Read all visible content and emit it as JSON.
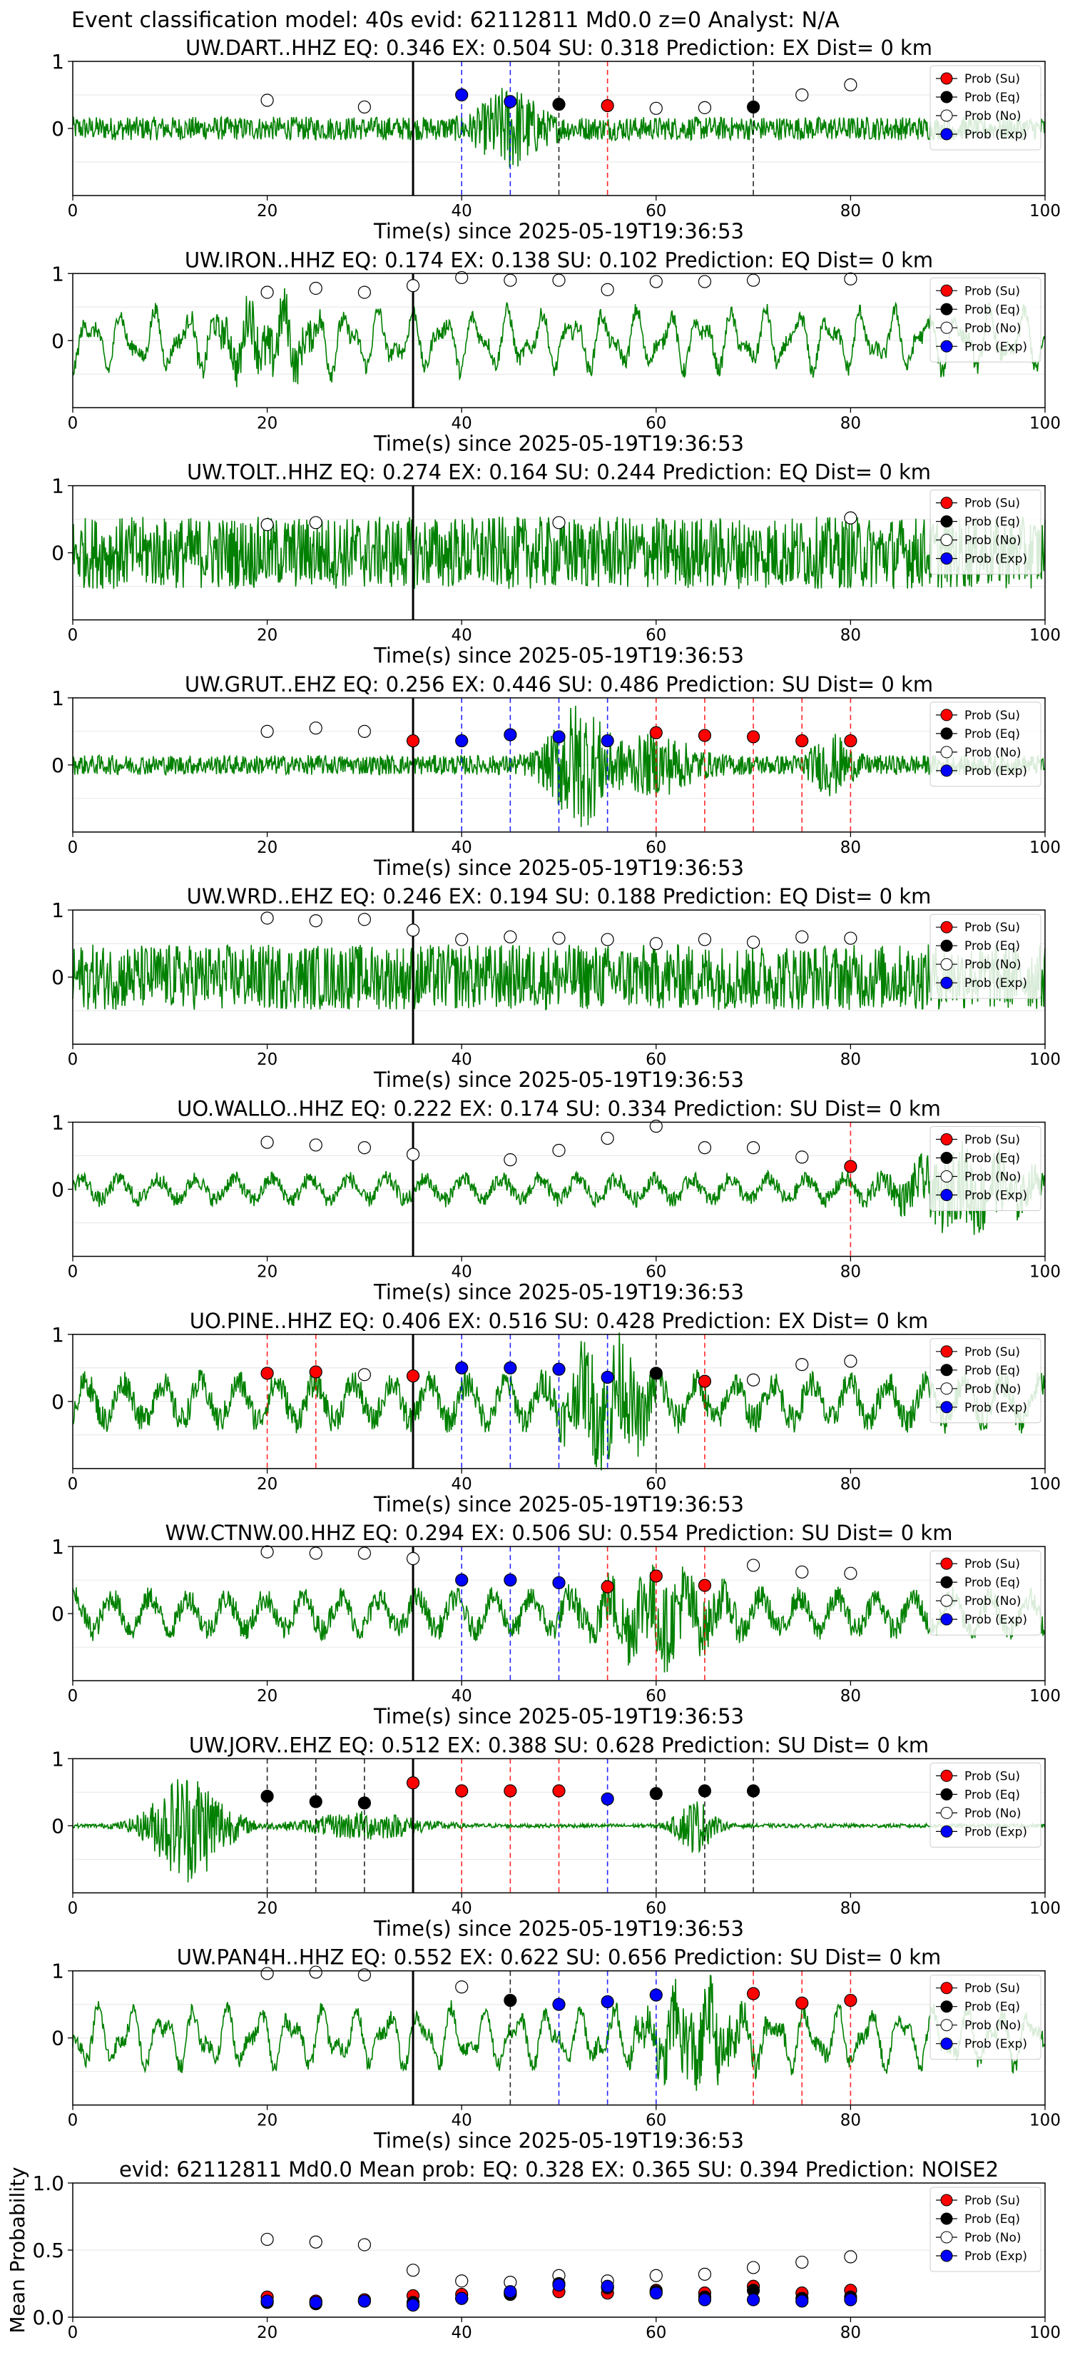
{
  "figure_title": "Event classification model: 40s evid: 62112811 Md0.0 z=0 Analyst: N/A",
  "x_axis_label": "Time(s) since 2025-05-19T19:36:53",
  "legend_labels": [
    "Prob (Su)",
    "Prob (Eq)",
    "Prob (No)",
    "Prob (Exp)"
  ],
  "colors": {
    "su": "#ff0000",
    "eq": "#000000",
    "no": "#ffffff",
    "exp": "#0000ff",
    "trace": "#008000",
    "origin_line": "#000000"
  },
  "chart_data": [
    {
      "type": "line",
      "title": "UW.DART..HHZ   EQ: 0.346  EX: 0.504  SU: 0.318   Prediction: EX    Dist= 0 km",
      "xlim": [
        0,
        100
      ],
      "ylim": [
        -1,
        1
      ],
      "xticks": [
        0,
        20,
        40,
        60,
        80,
        100
      ],
      "yticks": [
        0,
        1
      ],
      "trace": {
        "style": "noise",
        "amp": 0.18,
        "bursts": [
          [
            45,
            3,
            0.5
          ]
        ]
      },
      "origin_time": 35,
      "points": [
        {
          "x": 20,
          "y": 0.42,
          "class": "no"
        },
        {
          "x": 30,
          "y": 0.32,
          "class": "no"
        },
        {
          "x": 40,
          "y": 0.5,
          "class": "exp"
        },
        {
          "x": 45,
          "y": 0.4,
          "class": "exp"
        },
        {
          "x": 50,
          "y": 0.36,
          "class": "eq"
        },
        {
          "x": 55,
          "y": 0.34,
          "class": "su"
        },
        {
          "x": 60,
          "y": 0.3,
          "class": "no"
        },
        {
          "x": 65,
          "y": 0.31,
          "class": "no"
        },
        {
          "x": 70,
          "y": 0.32,
          "class": "eq"
        },
        {
          "x": 75,
          "y": 0.5,
          "class": "no"
        },
        {
          "x": 80,
          "y": 0.65,
          "class": "no"
        }
      ]
    },
    {
      "type": "line",
      "title": "UW.IRON..HHZ   EQ: 0.174  EX: 0.138  SU: 0.102   Prediction: EQ    Dist= 0 km",
      "xlim": [
        0,
        100
      ],
      "ylim": [
        -1,
        1
      ],
      "xticks": [
        0,
        20,
        40,
        60,
        80,
        100
      ],
      "yticks": [
        0,
        1
      ],
      "trace": {
        "style": "wave",
        "amp": 0.5,
        "bursts": [
          [
            20,
            5,
            0.3
          ]
        ]
      },
      "origin_time": 35,
      "points": [
        {
          "x": 20,
          "y": 0.72,
          "class": "no"
        },
        {
          "x": 25,
          "y": 0.78,
          "class": "no"
        },
        {
          "x": 30,
          "y": 0.72,
          "class": "no"
        },
        {
          "x": 35,
          "y": 0.82,
          "class": "no"
        },
        {
          "x": 40,
          "y": 0.94,
          "class": "no"
        },
        {
          "x": 45,
          "y": 0.9,
          "class": "no"
        },
        {
          "x": 50,
          "y": 0.9,
          "class": "no"
        },
        {
          "x": 55,
          "y": 0.76,
          "class": "no"
        },
        {
          "x": 60,
          "y": 0.88,
          "class": "no"
        },
        {
          "x": 65,
          "y": 0.88,
          "class": "no"
        },
        {
          "x": 70,
          "y": 0.9,
          "class": "no"
        },
        {
          "x": 80,
          "y": 0.92,
          "class": "no"
        }
      ]
    },
    {
      "type": "line",
      "title": "UW.TOLT..HHZ   EQ: 0.274  EX: 0.164  SU: 0.244   Prediction: EQ    Dist= 0 km",
      "xlim": [
        0,
        100
      ],
      "ylim": [
        -1,
        1
      ],
      "xticks": [
        0,
        20,
        40,
        60,
        80,
        100
      ],
      "yticks": [
        0,
        1
      ],
      "trace": {
        "style": "noise",
        "amp": 0.55,
        "bursts": []
      },
      "origin_time": 35,
      "points": [
        {
          "x": 20,
          "y": 0.42,
          "class": "no"
        },
        {
          "x": 25,
          "y": 0.45,
          "class": "no"
        },
        {
          "x": 50,
          "y": 0.45,
          "class": "no"
        },
        {
          "x": 80,
          "y": 0.52,
          "class": "no"
        }
      ]
    },
    {
      "type": "line",
      "title": "UW.GRUT..EHZ   EQ: 0.256  EX: 0.446  SU: 0.486   Prediction: SU    Dist= 0 km",
      "xlim": [
        0,
        100
      ],
      "ylim": [
        -1,
        1
      ],
      "xticks": [
        0,
        20,
        40,
        60,
        80,
        100
      ],
      "yticks": [
        0,
        1
      ],
      "trace": {
        "style": "noise",
        "amp": 0.15,
        "bursts": [
          [
            52,
            3,
            0.85
          ],
          [
            60,
            4,
            0.35
          ],
          [
            78,
            2,
            0.35
          ]
        ]
      },
      "origin_time": 35,
      "points": [
        {
          "x": 20,
          "y": 0.5,
          "class": "no"
        },
        {
          "x": 25,
          "y": 0.55,
          "class": "no"
        },
        {
          "x": 30,
          "y": 0.5,
          "class": "no"
        },
        {
          "x": 35,
          "y": 0.36,
          "class": "su"
        },
        {
          "x": 40,
          "y": 0.36,
          "class": "exp"
        },
        {
          "x": 45,
          "y": 0.45,
          "class": "exp"
        },
        {
          "x": 50,
          "y": 0.42,
          "class": "exp"
        },
        {
          "x": 55,
          "y": 0.36,
          "class": "exp"
        },
        {
          "x": 60,
          "y": 0.48,
          "class": "su"
        },
        {
          "x": 65,
          "y": 0.44,
          "class": "su"
        },
        {
          "x": 70,
          "y": 0.42,
          "class": "su"
        },
        {
          "x": 75,
          "y": 0.36,
          "class": "su"
        },
        {
          "x": 80,
          "y": 0.36,
          "class": "su"
        }
      ]
    },
    {
      "type": "line",
      "title": "UW.WRD..EHZ   EQ: 0.246  EX: 0.194  SU: 0.188   Prediction: EQ    Dist= 0 km",
      "xlim": [
        0,
        100
      ],
      "ylim": [
        -1,
        1
      ],
      "xticks": [
        0,
        20,
        40,
        60,
        80,
        100
      ],
      "yticks": [
        0,
        1
      ],
      "trace": {
        "style": "noise",
        "amp": 0.5,
        "bursts": []
      },
      "origin_time": 35,
      "points": [
        {
          "x": 20,
          "y": 0.88,
          "class": "no"
        },
        {
          "x": 25,
          "y": 0.84,
          "class": "no"
        },
        {
          "x": 30,
          "y": 0.86,
          "class": "no"
        },
        {
          "x": 35,
          "y": 0.7,
          "class": "no"
        },
        {
          "x": 40,
          "y": 0.56,
          "class": "no"
        },
        {
          "x": 45,
          "y": 0.6,
          "class": "no"
        },
        {
          "x": 50,
          "y": 0.58,
          "class": "no"
        },
        {
          "x": 55,
          "y": 0.56,
          "class": "no"
        },
        {
          "x": 60,
          "y": 0.5,
          "class": "no"
        },
        {
          "x": 65,
          "y": 0.56,
          "class": "no"
        },
        {
          "x": 70,
          "y": 0.52,
          "class": "no"
        },
        {
          "x": 75,
          "y": 0.6,
          "class": "no"
        },
        {
          "x": 80,
          "y": 0.58,
          "class": "no"
        }
      ]
    },
    {
      "type": "line",
      "title": "UO.WALLO..HHZ   EQ: 0.222  EX: 0.174  SU: 0.334   Prediction: SU    Dist= 0 km",
      "xlim": [
        0,
        100
      ],
      "ylim": [
        -1,
        1
      ],
      "xticks": [
        0,
        20,
        40,
        60,
        80,
        100
      ],
      "yticks": [
        0,
        1
      ],
      "trace": {
        "style": "mixed",
        "amp": 0.2,
        "bursts": [
          [
            92,
            6,
            0.5
          ]
        ]
      },
      "origin_time": 35,
      "points": [
        {
          "x": 20,
          "y": 0.7,
          "class": "no"
        },
        {
          "x": 25,
          "y": 0.66,
          "class": "no"
        },
        {
          "x": 30,
          "y": 0.62,
          "class": "no"
        },
        {
          "x": 35,
          "y": 0.52,
          "class": "no"
        },
        {
          "x": 45,
          "y": 0.44,
          "class": "no"
        },
        {
          "x": 50,
          "y": 0.58,
          "class": "no"
        },
        {
          "x": 55,
          "y": 0.76,
          "class": "no"
        },
        {
          "x": 60,
          "y": 0.94,
          "class": "no"
        },
        {
          "x": 65,
          "y": 0.62,
          "class": "no"
        },
        {
          "x": 70,
          "y": 0.62,
          "class": "no"
        },
        {
          "x": 75,
          "y": 0.48,
          "class": "no"
        },
        {
          "x": 80,
          "y": 0.34,
          "class": "su"
        }
      ]
    },
    {
      "type": "line",
      "title": "UO.PINE..HHZ   EQ: 0.406  EX: 0.516  SU: 0.428   Prediction: EX    Dist= 0 km",
      "xlim": [
        0,
        100
      ],
      "ylim": [
        -1,
        1
      ],
      "xticks": [
        0,
        20,
        40,
        60,
        80,
        100
      ],
      "yticks": [
        0,
        1
      ],
      "trace": {
        "style": "mixed",
        "amp": 0.35,
        "bursts": [
          [
            55,
            4,
            0.7
          ]
        ]
      },
      "origin_time": 35,
      "points": [
        {
          "x": 20,
          "y": 0.42,
          "class": "su"
        },
        {
          "x": 25,
          "y": 0.44,
          "class": "su"
        },
        {
          "x": 30,
          "y": 0.4,
          "class": "no"
        },
        {
          "x": 35,
          "y": 0.38,
          "class": "su"
        },
        {
          "x": 40,
          "y": 0.5,
          "class": "exp"
        },
        {
          "x": 45,
          "y": 0.5,
          "class": "exp"
        },
        {
          "x": 50,
          "y": 0.48,
          "class": "exp"
        },
        {
          "x": 55,
          "y": 0.36,
          "class": "exp"
        },
        {
          "x": 60,
          "y": 0.42,
          "class": "eq"
        },
        {
          "x": 65,
          "y": 0.3,
          "class": "su"
        },
        {
          "x": 70,
          "y": 0.32,
          "class": "no"
        },
        {
          "x": 75,
          "y": 0.55,
          "class": "no"
        },
        {
          "x": 80,
          "y": 0.6,
          "class": "no"
        }
      ]
    },
    {
      "type": "line",
      "title": "WW.CTNW.00.HHZ   EQ: 0.294  EX: 0.506  SU: 0.554   Prediction: SU    Dist= 0 km",
      "xlim": [
        0,
        100
      ],
      "ylim": [
        -1,
        1
      ],
      "xticks": [
        0,
        20,
        40,
        60,
        80,
        100
      ],
      "yticks": [
        0,
        1
      ],
      "trace": {
        "style": "mixed",
        "amp": 0.3,
        "bursts": [
          [
            60,
            6,
            0.5
          ]
        ]
      },
      "origin_time": 35,
      "points": [
        {
          "x": 20,
          "y": 0.92,
          "class": "no"
        },
        {
          "x": 25,
          "y": 0.9,
          "class": "no"
        },
        {
          "x": 30,
          "y": 0.9,
          "class": "no"
        },
        {
          "x": 35,
          "y": 0.82,
          "class": "no"
        },
        {
          "x": 40,
          "y": 0.5,
          "class": "exp"
        },
        {
          "x": 45,
          "y": 0.5,
          "class": "exp"
        },
        {
          "x": 50,
          "y": 0.46,
          "class": "exp"
        },
        {
          "x": 55,
          "y": 0.4,
          "class": "su"
        },
        {
          "x": 60,
          "y": 0.56,
          "class": "su"
        },
        {
          "x": 65,
          "y": 0.42,
          "class": "su"
        },
        {
          "x": 70,
          "y": 0.72,
          "class": "no"
        },
        {
          "x": 75,
          "y": 0.62,
          "class": "no"
        },
        {
          "x": 80,
          "y": 0.6,
          "class": "no"
        }
      ]
    },
    {
      "type": "line",
      "title": "UW.JORV..EHZ   EQ: 0.512  EX: 0.388  SU: 0.628   Prediction: SU    Dist= 0 km",
      "xlim": [
        0,
        100
      ],
      "ylim": [
        -1,
        1
      ],
      "xticks": [
        0,
        20,
        40,
        60,
        80,
        100
      ],
      "yticks": [
        0,
        1
      ],
      "trace": {
        "style": "quiet",
        "amp": 0.03,
        "bursts": [
          [
            12,
            4,
            0.85
          ],
          [
            30,
            6,
            0.2
          ],
          [
            64,
            2,
            0.4
          ]
        ]
      },
      "origin_time": 35,
      "points": [
        {
          "x": 20,
          "y": 0.44,
          "class": "eq"
        },
        {
          "x": 25,
          "y": 0.36,
          "class": "eq"
        },
        {
          "x": 30,
          "y": 0.34,
          "class": "eq"
        },
        {
          "x": 35,
          "y": 0.64,
          "class": "su"
        },
        {
          "x": 40,
          "y": 0.52,
          "class": "su"
        },
        {
          "x": 45,
          "y": 0.52,
          "class": "su"
        },
        {
          "x": 50,
          "y": 0.52,
          "class": "su"
        },
        {
          "x": 55,
          "y": 0.4,
          "class": "exp"
        },
        {
          "x": 60,
          "y": 0.48,
          "class": "eq"
        },
        {
          "x": 65,
          "y": 0.52,
          "class": "eq"
        },
        {
          "x": 70,
          "y": 0.52,
          "class": "eq"
        }
      ]
    },
    {
      "type": "line",
      "title": "UW.PAN4H..HHZ   EQ: 0.552  EX: 0.622  SU: 0.656   Prediction: SU    Dist= 0 km",
      "xlim": [
        0,
        100
      ],
      "ylim": [
        -1,
        1
      ],
      "xticks": [
        0,
        20,
        40,
        60,
        80,
        100
      ],
      "yticks": [
        0,
        1
      ],
      "trace": {
        "style": "wave",
        "amp": 0.5,
        "bursts": [
          [
            64,
            5,
            0.5
          ]
        ]
      },
      "origin_time": 35,
      "points": [
        {
          "x": 20,
          "y": 0.96,
          "class": "no"
        },
        {
          "x": 25,
          "y": 0.98,
          "class": "no"
        },
        {
          "x": 30,
          "y": 0.94,
          "class": "no"
        },
        {
          "x": 40,
          "y": 0.76,
          "class": "no"
        },
        {
          "x": 45,
          "y": 0.56,
          "class": "eq"
        },
        {
          "x": 50,
          "y": 0.5,
          "class": "exp"
        },
        {
          "x": 55,
          "y": 0.54,
          "class": "exp"
        },
        {
          "x": 60,
          "y": 0.64,
          "class": "exp"
        },
        {
          "x": 70,
          "y": 0.66,
          "class": "su"
        },
        {
          "x": 75,
          "y": 0.52,
          "class": "su"
        },
        {
          "x": 80,
          "y": 0.56,
          "class": "su"
        }
      ]
    },
    {
      "type": "scatter",
      "title": "evid: 62112811  Md0.0   Mean prob:   EQ: 0.328  EX: 0.365  SU: 0.394   Prediction: NOISE2",
      "ylabel": "Mean Probability",
      "xlim": [
        0,
        100
      ],
      "ylim": [
        0,
        1
      ],
      "xticks": [
        0,
        20,
        40,
        60,
        80,
        100
      ],
      "yticks": [
        0,
        0.5,
        1
      ],
      "ytick_labels": [
        "0.0",
        "0.5",
        "1.0"
      ],
      "x": [
        20,
        25,
        30,
        35,
        40,
        45,
        50,
        55,
        60,
        65,
        70,
        75,
        80
      ],
      "series": [
        {
          "name": "Prob (No)",
          "class": "no",
          "values": [
            0.58,
            0.56,
            0.54,
            0.35,
            0.27,
            0.26,
            0.31,
            0.27,
            0.31,
            0.32,
            0.37,
            0.41,
            0.45
          ]
        },
        {
          "name": "Prob (Su)",
          "class": "su",
          "values": [
            0.15,
            0.12,
            0.13,
            0.16,
            0.17,
            0.18,
            0.19,
            0.18,
            0.2,
            0.18,
            0.23,
            0.18,
            0.2
          ]
        },
        {
          "name": "Prob (Eq)",
          "class": "eq",
          "values": [
            0.11,
            0.1,
            0.12,
            0.11,
            0.14,
            0.17,
            0.25,
            0.22,
            0.19,
            0.15,
            0.2,
            0.14,
            0.15
          ]
        },
        {
          "name": "Prob (Exp)",
          "class": "exp",
          "values": [
            0.12,
            0.11,
            0.12,
            0.09,
            0.14,
            0.19,
            0.24,
            0.23,
            0.18,
            0.13,
            0.13,
            0.12,
            0.13
          ]
        }
      ]
    }
  ]
}
